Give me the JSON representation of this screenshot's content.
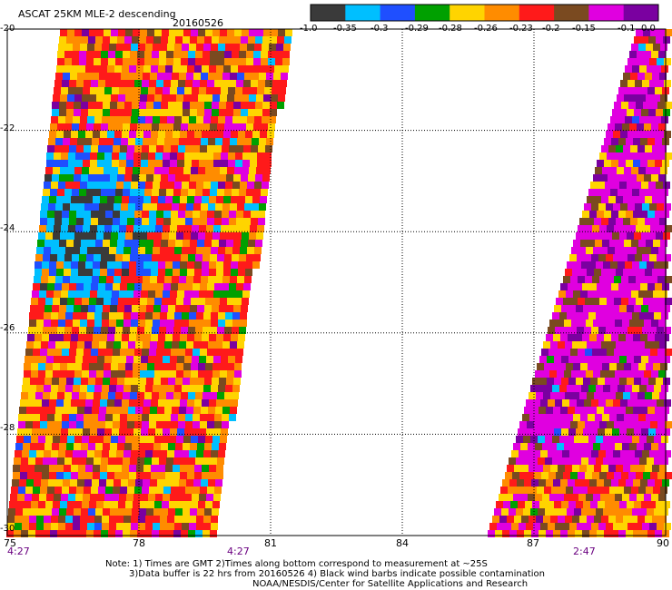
{
  "header": {
    "title": "ASCAT 25KM MLE-2 descending",
    "date": "20160526"
  },
  "colorbar": {
    "colors": [
      "#3a3a3a",
      "#00bfff",
      "#1f4fff",
      "#00a000",
      "#ffd400",
      "#ff8c00",
      "#ff1a1a",
      "#7a4a20",
      "#e000e0",
      "#7a00a0"
    ],
    "labels": [
      "-1.0",
      "-0.35",
      "-0.3",
      "-0.29",
      "-0.28",
      "-0.26",
      "-0.23",
      "-0.2",
      "-0.15",
      "-0.1",
      "0.0"
    ]
  },
  "axes": {
    "x_ticks": [
      "75",
      "78",
      "81",
      "84",
      "87",
      "90"
    ],
    "y_ticks": [
      "-20",
      "-22",
      "-24",
      "-26",
      "-28",
      "-30"
    ],
    "xlim": [
      75,
      90
    ],
    "ylim": [
      -30,
      -20
    ],
    "grid": true
  },
  "pass_times": [
    "4:27",
    "4:27",
    "2:47"
  ],
  "footer": {
    "line1": "Note: 1) Times are GMT 2)Times along bottom correspond to measurement at ~25S",
    "line2": "3)Data buffer is 22 hrs from 20160526 4) Black wind barbs indicate possible contamination",
    "line3": "NOAA/NESDIS/Center for Satellite Applications and Research"
  }
}
